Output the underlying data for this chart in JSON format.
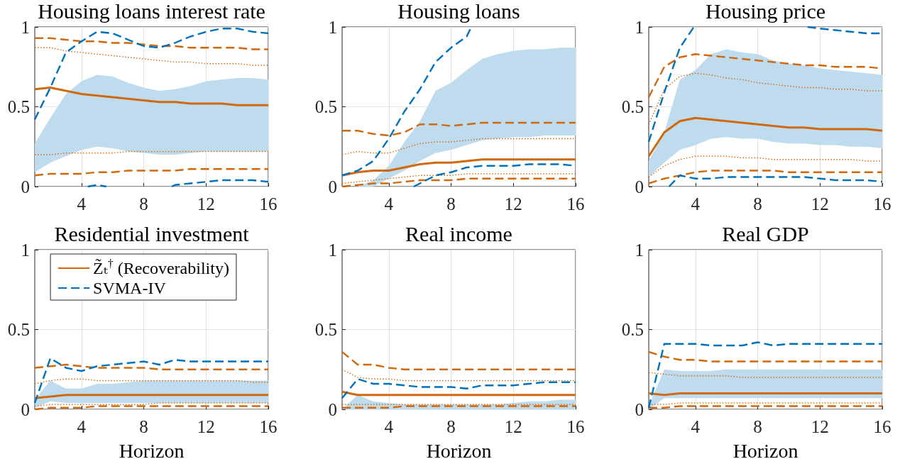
{
  "chart_data": [
    {
      "type": "line",
      "title": "Housing loans interest rate",
      "x": [
        1,
        2,
        3,
        4,
        5,
        6,
        7,
        8,
        9,
        10,
        11,
        12,
        13,
        14,
        15,
        16
      ],
      "xlim": [
        1,
        16
      ],
      "xticks": [
        4,
        8,
        12,
        16
      ],
      "ylim": [
        0,
        1
      ],
      "yticks": [
        0,
        0.5,
        1
      ],
      "grid": true,
      "marker": "none",
      "series": [
        {
          "type": "area",
          "color": "#bfdcef",
          "values": [
            null,
            null,
            null,
            null,
            null,
            null,
            null,
            null,
            null,
            null,
            null,
            null,
            null,
            null,
            null,
            null
          ],
          "lower": [
            0.09,
            0.15,
            0.19,
            0.23,
            0.25,
            0.24,
            0.22,
            0.21,
            0.2,
            0.2,
            0.21,
            0.22,
            0.22,
            0.22,
            0.22,
            0.22
          ],
          "upper": [
            0.27,
            0.43,
            0.58,
            0.66,
            0.7,
            0.69,
            0.65,
            0.62,
            0.6,
            0.61,
            0.63,
            0.66,
            0.67,
            0.68,
            0.68,
            0.67
          ]
        },
        {
          "color": "#d0690e",
          "line_style": "dashed",
          "values": [
            0.93,
            0.93,
            0.92,
            0.91,
            0.91,
            0.9,
            0.9,
            0.89,
            0.88,
            0.88,
            0.87,
            0.87,
            0.87,
            0.87,
            0.86,
            0.86
          ]
        },
        {
          "color": "#d0690e",
          "line_style": "dotted",
          "values": [
            0.87,
            0.87,
            0.85,
            0.84,
            0.83,
            0.82,
            0.81,
            0.8,
            0.79,
            0.78,
            0.78,
            0.77,
            0.77,
            0.77,
            0.76,
            0.76
          ]
        },
        {
          "color": "#d0690e",
          "line_style": "dotted",
          "values": [
            0.2,
            0.2,
            0.21,
            0.21,
            0.21,
            0.21,
            0.22,
            0.22,
            0.22,
            0.22,
            0.22,
            0.22,
            0.22,
            0.22,
            0.22,
            0.22
          ]
        },
        {
          "color": "#d0690e",
          "line_style": "dashed",
          "values": [
            0.07,
            0.08,
            0.08,
            0.08,
            0.09,
            0.09,
            0.1,
            0.1,
            0.1,
            0.1,
            0.11,
            0.11,
            0.11,
            0.11,
            0.11,
            0.11
          ]
        },
        {
          "color": "#d0690e",
          "line_style": "solid",
          "values": [
            0.61,
            0.62,
            0.6,
            0.58,
            0.57,
            0.56,
            0.55,
            0.54,
            0.53,
            0.53,
            0.52,
            0.52,
            0.52,
            0.51,
            0.51,
            0.51
          ]
        },
        {
          "color": "#0072bd",
          "line_style": "dashed",
          "values": [
            0.42,
            0.62,
            0.84,
            0.91,
            0.97,
            0.96,
            0.92,
            0.88,
            0.87,
            0.9,
            0.94,
            0.97,
            0.99,
            0.99,
            0.97,
            0.96
          ]
        },
        {
          "color": "#0072bd",
          "line_style": "dashed",
          "x": [
            4.4,
            5,
            5.6,
            7,
            9.8,
            10,
            11,
            12,
            13,
            14,
            15,
            16
          ],
          "values": [
            0,
            0.01,
            0,
            null,
            0,
            0.01,
            0.02,
            0.03,
            0.04,
            0.04,
            0.04,
            0.03
          ]
        }
      ]
    },
    {
      "type": "line",
      "title": "Housing loans",
      "x": [
        1,
        2,
        3,
        4,
        5,
        6,
        7,
        8,
        9,
        10,
        11,
        12,
        13,
        14,
        15,
        16
      ],
      "xlim": [
        1,
        16
      ],
      "xticks": [
        4,
        8,
        12,
        16
      ],
      "ylim": [
        0,
        1
      ],
      "yticks": [
        0,
        0.5,
        1
      ],
      "grid": true,
      "marker": "none",
      "series": [
        {
          "type": "area",
          "color": "#bfdcef",
          "values": [
            null,
            null,
            null,
            null,
            null,
            null,
            null,
            null,
            null,
            null,
            null,
            null,
            null,
            null,
            null,
            null
          ],
          "lower": [
            0,
            0,
            0,
            0.05,
            0.1,
            0.16,
            0.21,
            0.23,
            0.26,
            0.29,
            0.3,
            0.31,
            0.31,
            0.32,
            0.32,
            0.32
          ],
          "upper": [
            0,
            0,
            0.04,
            0.13,
            0.28,
            0.41,
            0.6,
            0.65,
            0.73,
            0.8,
            0.83,
            0.85,
            0.86,
            0.86,
            0.87,
            0.87
          ]
        },
        {
          "color": "#d0690e",
          "line_style": "dashed",
          "values": [
            0.35,
            0.35,
            0.33,
            0.32,
            0.34,
            0.39,
            0.39,
            0.38,
            0.39,
            0.4,
            0.4,
            0.4,
            0.4,
            0.4,
            0.4,
            0.4
          ]
        },
        {
          "color": "#d0690e",
          "line_style": "dotted",
          "values": [
            0.2,
            0.22,
            0.21,
            0.21,
            0.24,
            0.27,
            0.28,
            0.28,
            0.29,
            0.3,
            0.3,
            0.3,
            0.3,
            0.3,
            0.3,
            0.3
          ]
        },
        {
          "color": "#d0690e",
          "line_style": "dotted",
          "values": [
            0.02,
            0.03,
            0.04,
            0.05,
            0.06,
            0.07,
            0.07,
            0.07,
            0.08,
            0.08,
            0.08,
            0.08,
            0.08,
            0.08,
            0.08,
            0.08
          ]
        },
        {
          "color": "#d0690e",
          "line_style": "dashed",
          "values": [
            0,
            0.01,
            0.02,
            0.02,
            0.03,
            0.04,
            0.04,
            0.04,
            0.05,
            0.05,
            0.05,
            0.05,
            0.05,
            0.05,
            0.05,
            0.05
          ]
        },
        {
          "color": "#d0690e",
          "line_style": "solid",
          "values": [
            0.07,
            0.09,
            0.1,
            0.1,
            0.12,
            0.14,
            0.15,
            0.15,
            0.16,
            0.17,
            0.17,
            0.17,
            0.17,
            0.17,
            0.17,
            0.17
          ]
        },
        {
          "color": "#0072bd",
          "line_style": "dashed",
          "x": [
            1,
            2,
            3,
            4,
            5,
            6,
            7,
            8,
            9,
            9.3
          ],
          "values": [
            0.07,
            0.1,
            0.16,
            0.3,
            0.47,
            0.61,
            0.78,
            0.87,
            0.94,
            1
          ]
        },
        {
          "color": "#0072bd",
          "line_style": "dashed",
          "x": [
            5.6,
            6,
            7,
            8,
            9,
            10,
            11,
            12,
            13,
            14,
            15,
            16
          ],
          "values": [
            0,
            0.02,
            0.07,
            0.09,
            0.12,
            0.13,
            0.13,
            0.13,
            0.14,
            0.14,
            0.14,
            0.13
          ]
        }
      ]
    },
    {
      "type": "line",
      "title": "Housing price",
      "x": [
        1,
        2,
        3,
        4,
        5,
        6,
        7,
        8,
        9,
        10,
        11,
        12,
        13,
        14,
        15,
        16
      ],
      "xlim": [
        1,
        16
      ],
      "xticks": [
        4,
        8,
        12,
        16
      ],
      "ylim": [
        0,
        1
      ],
      "yticks": [
        0,
        0.5,
        1
      ],
      "grid": true,
      "marker": "none",
      "series": [
        {
          "type": "area",
          "color": "#bfdcef",
          "values": [
            null,
            null,
            null,
            null,
            null,
            null,
            null,
            null,
            null,
            null,
            null,
            null,
            null,
            null,
            null,
            null
          ],
          "lower": [
            0.06,
            0.15,
            0.23,
            0.26,
            0.3,
            0.31,
            0.3,
            0.3,
            0.28,
            0.27,
            0.27,
            0.26,
            0.26,
            0.25,
            0.25,
            0.24
          ],
          "upper": [
            0.16,
            0.34,
            0.67,
            0.73,
            0.83,
            0.86,
            0.84,
            0.83,
            0.79,
            0.77,
            0.76,
            0.74,
            0.73,
            0.72,
            0.71,
            0.7
          ]
        },
        {
          "color": "#d0690e",
          "line_style": "dashed",
          "values": [
            0.56,
            0.75,
            0.81,
            0.83,
            0.82,
            0.81,
            0.8,
            0.79,
            0.78,
            0.77,
            0.76,
            0.76,
            0.75,
            0.75,
            0.75,
            0.74
          ]
        },
        {
          "color": "#d0690e",
          "line_style": "dotted",
          "values": [
            0.39,
            0.61,
            0.69,
            0.71,
            0.7,
            0.68,
            0.67,
            0.65,
            0.64,
            0.63,
            0.62,
            0.62,
            0.61,
            0.61,
            0.6,
            0.6
          ]
        },
        {
          "color": "#d0690e",
          "line_style": "dotted",
          "values": [
            0.06,
            0.13,
            0.17,
            0.19,
            0.19,
            0.19,
            0.18,
            0.18,
            0.17,
            0.17,
            0.17,
            0.17,
            0.17,
            0.17,
            0.16,
            0.16
          ]
        },
        {
          "color": "#d0690e",
          "line_style": "dashed",
          "values": [
            0.02,
            0.05,
            0.07,
            0.09,
            0.1,
            0.1,
            0.1,
            0.1,
            0.1,
            0.09,
            0.09,
            0.09,
            0.09,
            0.09,
            0.09,
            0.09
          ]
        },
        {
          "color": "#d0690e",
          "line_style": "solid",
          "values": [
            0.19,
            0.34,
            0.41,
            0.43,
            0.42,
            0.41,
            0.4,
            0.39,
            0.38,
            0.37,
            0.37,
            0.36,
            0.36,
            0.36,
            0.36,
            0.35
          ]
        },
        {
          "color": "#0072bd",
          "line_style": "dashed",
          "x": [
            1,
            2,
            3,
            3.9,
            7,
            11.2,
            12,
            13,
            14,
            15,
            16
          ],
          "values": [
            0.28,
            0.59,
            0.87,
            1,
            null,
            1,
            0.99,
            0.98,
            0.97,
            0.96,
            0.96
          ]
        },
        {
          "color": "#0072bd",
          "line_style": "dashed",
          "x": [
            2.3,
            3,
            4,
            5,
            6,
            7,
            8,
            9,
            10,
            11,
            12,
            13,
            14,
            15,
            16
          ],
          "values": [
            0,
            0.07,
            0.05,
            0.05,
            0.06,
            0.06,
            0.06,
            0.06,
            0.06,
            0.06,
            0.05,
            0.04,
            0.04,
            0.04,
            0.03
          ]
        }
      ]
    },
    {
      "type": "line",
      "title": "Residential investment",
      "xlabel": "Horizon",
      "x": [
        1,
        2,
        3,
        4,
        5,
        6,
        7,
        8,
        9,
        10,
        11,
        12,
        13,
        14,
        15,
        16
      ],
      "xlim": [
        1,
        16
      ],
      "xticks": [
        4,
        8,
        12,
        16
      ],
      "ylim": [
        0,
        1
      ],
      "yticks": [
        0,
        0.5,
        1
      ],
      "grid": true,
      "marker": "none",
      "legend": "top",
      "series": [
        {
          "type": "area",
          "color": "#bfdcef",
          "values": [
            null,
            null,
            null,
            null,
            null,
            null,
            null,
            null,
            null,
            null,
            null,
            null,
            null,
            null,
            null,
            null
          ],
          "lower": [
            0.01,
            0.05,
            0.04,
            0.04,
            0.04,
            0.04,
            0.04,
            0.04,
            0.04,
            0.04,
            0.04,
            0.04,
            0.04,
            0.04,
            0.04,
            0.04
          ],
          "upper": [
            0.06,
            0.18,
            0.13,
            0.13,
            0.16,
            0.16,
            0.17,
            0.18,
            0.18,
            0.18,
            0.18,
            0.18,
            0.18,
            0.18,
            0.18,
            0.18
          ]
        },
        {
          "name": "Z̃ₜ$^{†}$ (Recoverability)",
          "color": "#d0690e",
          "line_style": "solid",
          "values": [
            0.07,
            0.08,
            0.09,
            0.09,
            0.09,
            0.09,
            0.09,
            0.09,
            0.09,
            0.09,
            0.09,
            0.09,
            0.09,
            0.09,
            0.09,
            0.09
          ]
        },
        {
          "color": "#d0690e",
          "line_style": "dashed",
          "values": [
            0.26,
            0.27,
            0.28,
            0.27,
            0.26,
            0.26,
            0.26,
            0.26,
            0.25,
            0.25,
            0.25,
            0.25,
            0.25,
            0.25,
            0.25,
            0.25
          ]
        },
        {
          "color": "#d0690e",
          "line_style": "dotted",
          "values": [
            0.16,
            0.18,
            0.19,
            0.19,
            0.18,
            0.18,
            0.18,
            0.18,
            0.18,
            0.18,
            0.18,
            0.18,
            0.18,
            0.18,
            0.17,
            0.17
          ]
        },
        {
          "color": "#d0690e",
          "line_style": "dotted",
          "values": [
            0.02,
            0.03,
            0.03,
            0.03,
            0.03,
            0.03,
            0.03,
            0.03,
            0.04,
            0.04,
            0.04,
            0.04,
            0.04,
            0.04,
            0.04,
            0.04
          ]
        },
        {
          "color": "#d0690e",
          "line_style": "dashed",
          "values": [
            0,
            0.01,
            0.01,
            0.01,
            0.02,
            0.02,
            0.02,
            0.02,
            0.02,
            0.02,
            0.02,
            0.02,
            0.02,
            0.02,
            0.02,
            0.02
          ]
        },
        {
          "name": "SVMA-IV",
          "color": "#0072bd",
          "line_style": "dashed",
          "values": [
            0.04,
            0.32,
            0.26,
            0.24,
            0.27,
            0.28,
            0.29,
            0.3,
            0.28,
            0.31,
            0.3,
            0.3,
            0.3,
            0.3,
            0.3,
            0.3
          ]
        }
      ]
    },
    {
      "type": "line",
      "title": "Real income",
      "xlabel": "Horizon",
      "x": [
        1,
        2,
        3,
        4,
        5,
        6,
        7,
        8,
        9,
        10,
        11,
        12,
        13,
        14,
        15,
        16
      ],
      "xlim": [
        1,
        16
      ],
      "xticks": [
        4,
        8,
        12,
        16
      ],
      "ylim": [
        0,
        1
      ],
      "yticks": [
        0,
        0.5,
        1
      ],
      "grid": true,
      "marker": "none",
      "series": [
        {
          "type": "area",
          "color": "#bfdcef",
          "values": [
            null,
            null,
            null,
            null,
            null,
            null,
            null,
            null,
            null,
            null,
            null,
            null,
            null,
            null,
            null,
            null
          ],
          "lower": [
            0,
            0,
            0,
            0,
            0,
            0,
            0,
            0,
            0,
            0,
            0,
            0,
            0,
            0,
            0,
            0
          ],
          "upper": [
            0,
            0.09,
            0.05,
            0.04,
            0.03,
            0.03,
            0.03,
            0.03,
            0.03,
            0.03,
            0.03,
            0.04,
            0.05,
            0.05,
            0.06,
            0.06
          ]
        },
        {
          "color": "#d0690e",
          "line_style": "dashed",
          "values": [
            0.36,
            0.28,
            0.28,
            0.26,
            0.25,
            0.25,
            0.25,
            0.25,
            0.25,
            0.25,
            0.25,
            0.25,
            0.25,
            0.25,
            0.25,
            0.25
          ]
        },
        {
          "color": "#d0690e",
          "line_style": "dotted",
          "values": [
            0.25,
            0.2,
            0.19,
            0.19,
            0.18,
            0.18,
            0.18,
            0.18,
            0.18,
            0.18,
            0.18,
            0.18,
            0.18,
            0.18,
            0.18,
            0.18
          ]
        },
        {
          "color": "#d0690e",
          "line_style": "dotted",
          "values": [
            0.03,
            0.03,
            0.03,
            0.03,
            0.03,
            0.03,
            0.03,
            0.03,
            0.03,
            0.03,
            0.03,
            0.03,
            0.03,
            0.03,
            0.03,
            0.03
          ]
        },
        {
          "color": "#d0690e",
          "line_style": "dashed",
          "values": [
            0.01,
            0.01,
            0.01,
            0.01,
            0.02,
            0.02,
            0.02,
            0.02,
            0.02,
            0.02,
            0.02,
            0.02,
            0.02,
            0.02,
            0.02,
            0.02
          ]
        },
        {
          "color": "#d0690e",
          "line_style": "solid",
          "values": [
            0.11,
            0.09,
            0.09,
            0.09,
            0.09,
            0.09,
            0.09,
            0.09,
            0.09,
            0.09,
            0.09,
            0.09,
            0.09,
            0.09,
            0.09,
            0.09
          ]
        },
        {
          "color": "#0072bd",
          "line_style": "dashed",
          "values": [
            0.07,
            0.19,
            0.16,
            0.16,
            0.15,
            0.14,
            0.14,
            0.14,
            0.13,
            0.15,
            0.15,
            0.15,
            0.16,
            0.17,
            0.17,
            0.17
          ]
        }
      ]
    },
    {
      "type": "line",
      "title": "Real GDP",
      "xlabel": "Horizon",
      "x": [
        1,
        2,
        3,
        4,
        5,
        6,
        7,
        8,
        9,
        10,
        11,
        12,
        13,
        14,
        15,
        16
      ],
      "xlim": [
        1,
        16
      ],
      "xticks": [
        4,
        8,
        12,
        16
      ],
      "ylim": [
        0,
        1
      ],
      "yticks": [
        0,
        0.5,
        1
      ],
      "grid": true,
      "marker": "none",
      "series": [
        {
          "type": "area",
          "color": "#bfdcef",
          "values": [
            null,
            null,
            null,
            null,
            null,
            null,
            null,
            null,
            null,
            null,
            null,
            null,
            null,
            null,
            null,
            null
          ],
          "lower": [
            0,
            0.07,
            0.07,
            0.07,
            0.07,
            0.07,
            0.07,
            0.07,
            0.07,
            0.07,
            0.07,
            0.07,
            0.07,
            0.07,
            0.07,
            0.07
          ],
          "upper": [
            0.02,
            0.25,
            0.24,
            0.24,
            0.24,
            0.25,
            0.25,
            0.25,
            0.25,
            0.25,
            0.25,
            0.25,
            0.25,
            0.25,
            0.25,
            0.25
          ]
        },
        {
          "color": "#d0690e",
          "line_style": "dashed",
          "values": [
            0.36,
            0.33,
            0.31,
            0.31,
            0.3,
            0.3,
            0.3,
            0.3,
            0.3,
            0.3,
            0.3,
            0.3,
            0.3,
            0.3,
            0.3,
            0.3
          ]
        },
        {
          "color": "#d0690e",
          "line_style": "dotted",
          "values": [
            0.23,
            0.22,
            0.21,
            0.21,
            0.21,
            0.21,
            0.2,
            0.2,
            0.2,
            0.2,
            0.2,
            0.2,
            0.2,
            0.2,
            0.2,
            0.2
          ]
        },
        {
          "color": "#d0690e",
          "line_style": "dotted",
          "values": [
            0.03,
            0.03,
            0.04,
            0.04,
            0.04,
            0.04,
            0.04,
            0.04,
            0.04,
            0.04,
            0.04,
            0.04,
            0.04,
            0.04,
            0.04,
            0.04
          ]
        },
        {
          "color": "#d0690e",
          "line_style": "dashed",
          "values": [
            0.01,
            0.01,
            0.02,
            0.02,
            0.02,
            0.02,
            0.02,
            0.02,
            0.02,
            0.02,
            0.02,
            0.02,
            0.02,
            0.02,
            0.02,
            0.02
          ]
        },
        {
          "color": "#d0690e",
          "line_style": "solid",
          "values": [
            0.1,
            0.09,
            0.1,
            0.1,
            0.1,
            0.1,
            0.1,
            0.1,
            0.1,
            0.1,
            0.1,
            0.1,
            0.1,
            0.1,
            0.1,
            0.1
          ]
        },
        {
          "color": "#0072bd",
          "line_style": "dashed",
          "values": [
            0.01,
            0.41,
            0.41,
            0.41,
            0.4,
            0.4,
            0.4,
            0.42,
            0.4,
            0.41,
            0.41,
            0.41,
            0.41,
            0.41,
            0.41,
            0.41
          ]
        }
      ]
    }
  ]
}
